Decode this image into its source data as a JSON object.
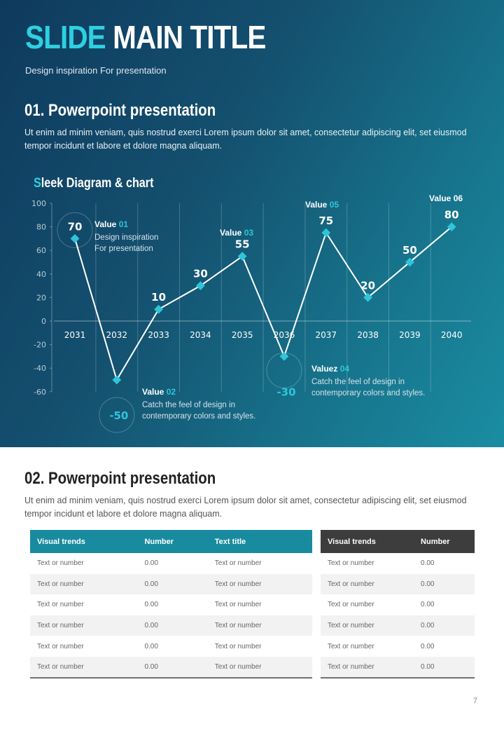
{
  "header": {
    "title_accent": "SLIDE",
    "title_main": "MAIN TITLE",
    "subtitle": "Design inspiration For presentation"
  },
  "section1": {
    "heading": "01. Powerpoint presentation",
    "body": "Ut enim ad minim veniam, quis nostrud exerci  Lorem ipsum dolor sit amet, consectetur adipiscing elit, set eiusmod tempor incidunt et labore et dolore magna aliquam."
  },
  "chart_data": {
    "type": "line",
    "title_first": "S",
    "title_rest": "leek Diagram & chart",
    "categories": [
      "2031",
      "2032",
      "2033",
      "2034",
      "2035",
      "2036",
      "2037",
      "2038",
      "2039",
      "2040"
    ],
    "values": [
      70,
      -50,
      10,
      30,
      55,
      -30,
      75,
      20,
      50,
      80
    ],
    "ylim": [
      -60,
      100
    ],
    "yticks": [
      100,
      80,
      60,
      40,
      20,
      0,
      -20,
      -40,
      -60
    ],
    "grid": "vertical",
    "line_color": "#ffffff",
    "marker_color": "#2ec6d8"
  },
  "annotations": [
    {
      "label": "Value",
      "num": "01",
      "text1": "Design inspiration",
      "text2": "For presentation"
    },
    {
      "label": "Value",
      "num": "02",
      "text1": "Catch the feel of design in",
      "text2": "contemporary colors and styles."
    },
    {
      "label": "Value",
      "num": "03"
    },
    {
      "label": "Valuez",
      "num": "04",
      "text1": "Catch the feel of design in",
      "text2": "contemporary colors and styles."
    },
    {
      "label": "Value",
      "num": "05"
    },
    {
      "label": "Value",
      "num": "06"
    }
  ],
  "section2": {
    "heading": "02. Powerpoint presentation",
    "body": "Ut enim ad minim veniam, quis nostrud exerci  Lorem ipsum dolor sit amet, consectetur adipiscing elit, set eiusmod tempor incidunt et labore et dolore magna aliquam."
  },
  "tableA": {
    "headers": [
      "Visual trends",
      "Number",
      "Text title"
    ],
    "rows": [
      [
        "Text or number",
        "0.00",
        "Text or number"
      ],
      [
        "Text or number",
        "0.00",
        "Text or number"
      ],
      [
        "Text or number",
        "0.00",
        "Text or number"
      ],
      [
        "Text or number",
        "0.00",
        "Text or number"
      ],
      [
        "Text or number",
        "0.00",
        "Text or number"
      ],
      [
        "Text or number",
        "0.00",
        "Text or number"
      ]
    ]
  },
  "tableB": {
    "headers": [
      "Visual trends",
      "Number"
    ],
    "rows": [
      [
        "Text or number",
        "0.00"
      ],
      [
        "Text or number",
        "0.00"
      ],
      [
        "Text or number",
        "0.00"
      ],
      [
        "Text or number",
        "0.00"
      ],
      [
        "Text or number",
        "0.00"
      ],
      [
        "Text or number",
        "0.00"
      ]
    ]
  },
  "page_number": "7"
}
